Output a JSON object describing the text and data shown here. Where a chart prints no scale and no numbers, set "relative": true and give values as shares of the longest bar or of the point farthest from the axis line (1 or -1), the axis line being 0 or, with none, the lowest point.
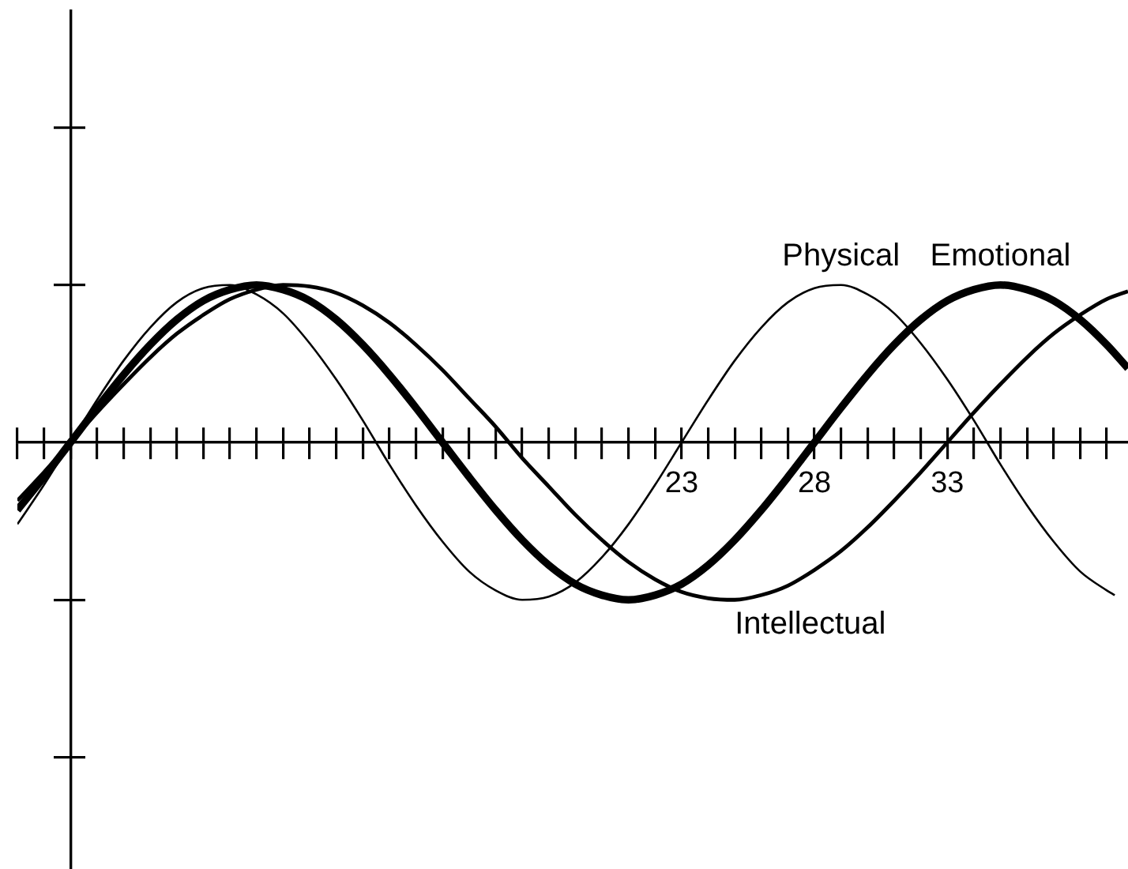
{
  "chart_data": {
    "type": "line",
    "relative": true,
    "xlim": [
      -2,
      39.8
    ],
    "xticks": [
      {
        "value": -2,
        "label": null
      },
      {
        "value": -1,
        "label": null
      },
      {
        "value": 0,
        "label": null
      },
      {
        "value": 1,
        "label": null
      },
      {
        "value": 2,
        "label": null
      },
      {
        "value": 3,
        "label": null
      },
      {
        "value": 4,
        "label": null
      },
      {
        "value": 5,
        "label": null
      },
      {
        "value": 6,
        "label": null
      },
      {
        "value": 7,
        "label": null
      },
      {
        "value": 8,
        "label": null
      },
      {
        "value": 9,
        "label": null
      },
      {
        "value": 10,
        "label": null
      },
      {
        "value": 11,
        "label": null
      },
      {
        "value": 12,
        "label": null
      },
      {
        "value": 13,
        "label": null
      },
      {
        "value": 14,
        "label": null
      },
      {
        "value": 15,
        "label": null
      },
      {
        "value": 16,
        "label": null
      },
      {
        "value": 17,
        "label": null
      },
      {
        "value": 18,
        "label": null
      },
      {
        "value": 19,
        "label": null
      },
      {
        "value": 20,
        "label": null
      },
      {
        "value": 21,
        "label": null
      },
      {
        "value": 22,
        "label": null
      },
      23,
      {
        "value": 24,
        "label": null
      },
      {
        "value": 25,
        "label": null
      },
      {
        "value": 26,
        "label": null
      },
      {
        "value": 27,
        "label": null
      },
      28,
      {
        "value": 29,
        "label": null
      },
      {
        "value": 30,
        "label": null
      },
      {
        "value": 31,
        "label": null
      },
      {
        "value": 32,
        "label": null
      },
      33,
      {
        "value": 34,
        "label": null
      },
      {
        "value": 35,
        "label": null
      },
      {
        "value": 36,
        "label": null
      },
      {
        "value": 37,
        "label": null
      },
      {
        "value": 38,
        "label": null
      },
      {
        "value": 39,
        "label": null
      }
    ],
    "series": [
      {
        "name": "Physical",
        "color": "#000000",
        "x": [
          -2,
          -1,
          0,
          1,
          2,
          3,
          4,
          5,
          6,
          7,
          8,
          9,
          10,
          11,
          12,
          13,
          14,
          15,
          16,
          17,
          18,
          19,
          20,
          21,
          22,
          23,
          24,
          25,
          26,
          27,
          28,
          29,
          30,
          31,
          32,
          33,
          34,
          35,
          36,
          37,
          38,
          39,
          39.3
        ],
        "values": [
          -0.52,
          -0.27,
          0,
          0.27,
          0.52,
          0.73,
          0.89,
          0.98,
          1,
          0.94,
          0.82,
          0.63,
          0.4,
          0.14,
          -0.14,
          -0.4,
          -0.63,
          -0.82,
          -0.94,
          -1,
          -0.98,
          -0.89,
          -0.73,
          -0.52,
          -0.27,
          0,
          0.27,
          0.52,
          0.73,
          0.89,
          0.98,
          1,
          0.94,
          0.82,
          0.63,
          0.4,
          0.14,
          -0.14,
          -0.4,
          -0.63,
          -0.82,
          -0.94,
          -0.97
        ]
      },
      {
        "name": "Emotional",
        "color": "#000000",
        "x": [
          -2,
          -1,
          0,
          1,
          2,
          3,
          4,
          5,
          6,
          7,
          8,
          9,
          10,
          11,
          12,
          13,
          14,
          15,
          16,
          17,
          18,
          19,
          20,
          21,
          22,
          23,
          24,
          25,
          26,
          27,
          28,
          29,
          30,
          31,
          32,
          33,
          34,
          35,
          36,
          37,
          38,
          39,
          39.8
        ],
        "values": [
          -0.43,
          -0.22,
          0,
          0.22,
          0.43,
          0.62,
          0.78,
          0.9,
          0.97,
          1,
          0.97,
          0.9,
          0.78,
          0.62,
          0.43,
          0.22,
          0,
          -0.22,
          -0.43,
          -0.62,
          -0.78,
          -0.9,
          -0.97,
          -1,
          -0.97,
          -0.9,
          -0.78,
          -0.62,
          -0.43,
          -0.22,
          0,
          0.22,
          0.43,
          0.62,
          0.78,
          0.9,
          0.97,
          1,
          0.97,
          0.9,
          0.78,
          0.62,
          0.47
        ]
      },
      {
        "name": "Intellectual",
        "color": "#000000",
        "x": [
          -2,
          -1,
          0,
          1,
          2,
          3,
          4,
          5,
          6,
          7,
          8,
          9,
          10,
          11,
          12,
          13,
          14,
          15,
          16,
          17,
          18,
          19,
          20,
          21,
          22,
          23,
          24,
          25,
          26,
          27,
          28,
          29,
          30,
          31,
          32,
          33,
          34,
          35,
          36,
          37,
          38,
          39,
          39.8
        ],
        "values": [
          -0.37,
          -0.19,
          0,
          0.19,
          0.37,
          0.54,
          0.69,
          0.81,
          0.91,
          0.97,
          1,
          0.99,
          0.95,
          0.87,
          0.76,
          0.62,
          0.46,
          0.28,
          0.1,
          -0.1,
          -0.28,
          -0.46,
          -0.62,
          -0.76,
          -0.87,
          -0.95,
          -0.99,
          -1,
          -0.97,
          -0.91,
          -0.81,
          -0.69,
          -0.54,
          -0.37,
          -0.19,
          0,
          0.19,
          0.37,
          0.54,
          0.69,
          0.81,
          0.91,
          0.96
        ]
      }
    ]
  }
}
